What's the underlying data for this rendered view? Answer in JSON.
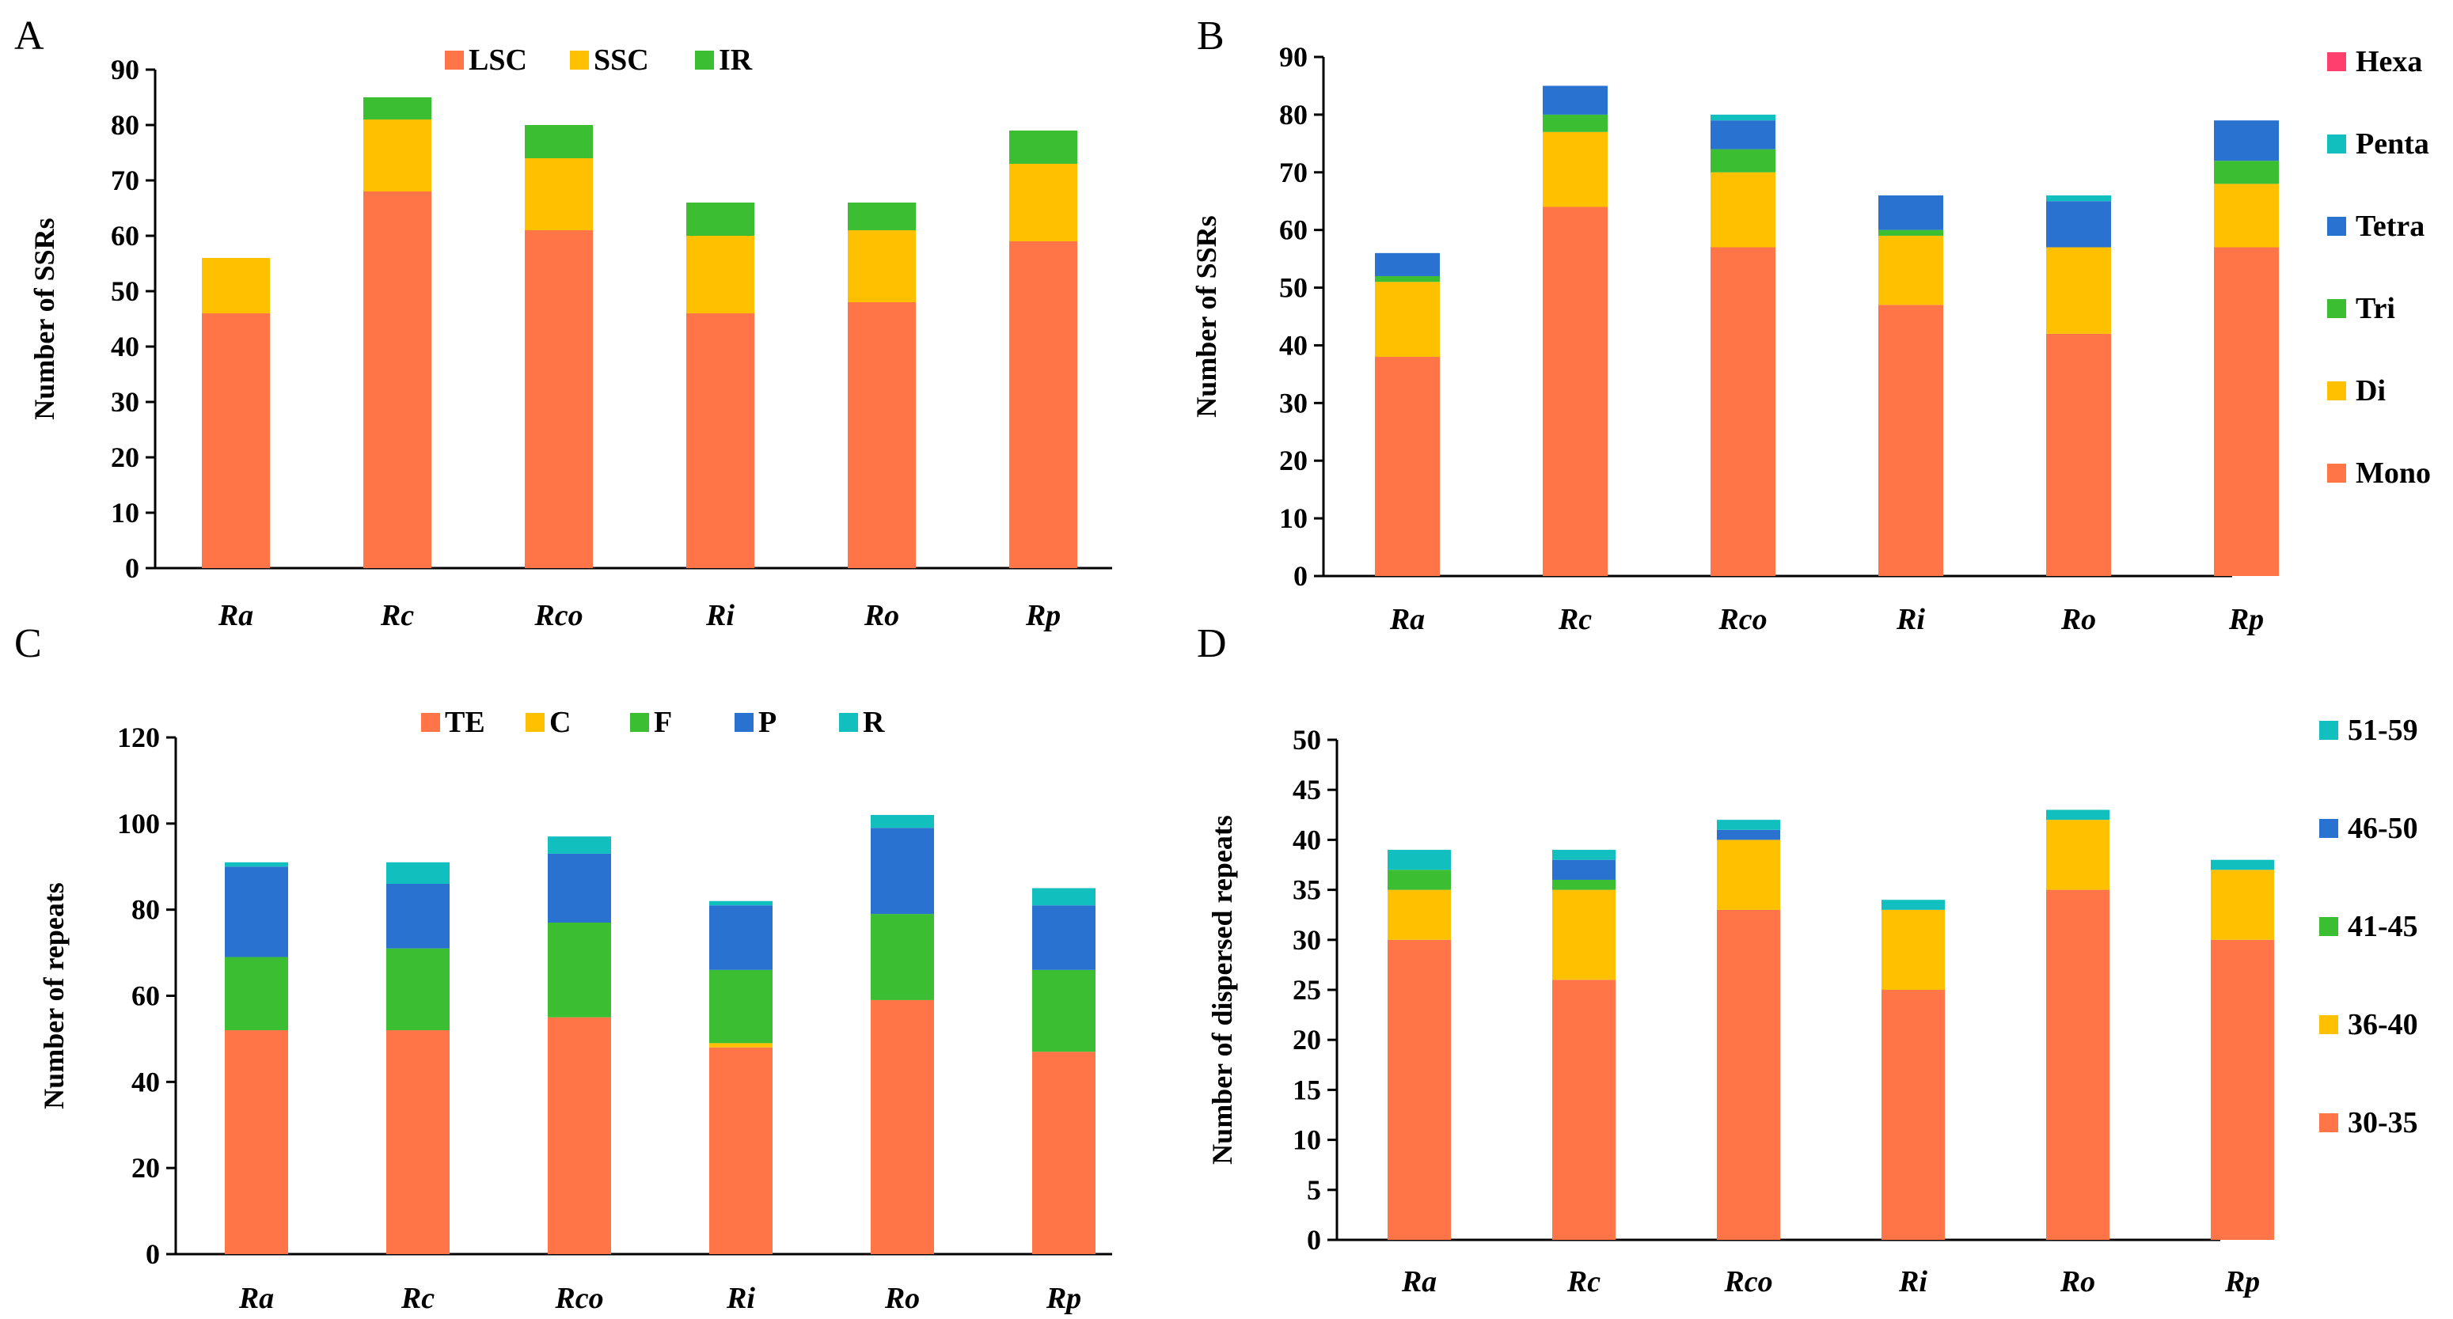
{
  "colors": {
    "orange": "#FF7548",
    "yellow": "#FFC000",
    "green": "#3BBE32",
    "blue": "#2A72CF",
    "teal": "#12BFBF",
    "pink": "#FF3F6E"
  },
  "chart_data": [
    {
      "panel": "A",
      "type": "bar",
      "stacked": true,
      "categories": [
        "Ra",
        "Rc",
        "Rco",
        "Ri",
        "Ro",
        "Rp"
      ],
      "ylabel": "Number of SSRs",
      "ylim": [
        0,
        90
      ],
      "yticks": [
        0,
        10,
        20,
        30,
        40,
        50,
        60,
        70,
        80,
        90
      ],
      "legend_position": "top-center",
      "series": [
        {
          "name": "LSC",
          "color": "#FF7548",
          "values": [
            46,
            68,
            61,
            46,
            48,
            59
          ]
        },
        {
          "name": "SSC",
          "color": "#FFC000",
          "values": [
            10,
            13,
            13,
            14,
            13,
            14
          ]
        },
        {
          "name": "IR",
          "color": "#3BBE32",
          "values": [
            0,
            4,
            6,
            6,
            5,
            6
          ]
        }
      ]
    },
    {
      "panel": "B",
      "type": "bar",
      "stacked": true,
      "categories": [
        "Ra",
        "Rc",
        "Rco",
        "Ri",
        "Ro",
        "Rp"
      ],
      "ylabel": "Number of SSRs",
      "ylim": [
        0,
        90
      ],
      "yticks": [
        0,
        10,
        20,
        30,
        40,
        50,
        60,
        70,
        80,
        90
      ],
      "legend_position": "right",
      "series": [
        {
          "name": "Mono",
          "color": "#FF7548",
          "values": [
            38,
            64,
            57,
            47,
            42,
            57
          ]
        },
        {
          "name": "Di",
          "color": "#FFC000",
          "values": [
            13,
            13,
            13,
            12,
            15,
            11
          ]
        },
        {
          "name": "Tri",
          "color": "#3BBE32",
          "values": [
            1,
            3,
            4,
            1,
            0,
            4
          ]
        },
        {
          "name": "Tetra",
          "color": "#2A72CF",
          "values": [
            4,
            5,
            5,
            6,
            8,
            7
          ]
        },
        {
          "name": "Penta",
          "color": "#12BFBF",
          "values": [
            0,
            0,
            1,
            0,
            1,
            0
          ]
        },
        {
          "name": "Hexa",
          "color": "#FF3F6E",
          "values": [
            0,
            0,
            0,
            0,
            0,
            0
          ]
        }
      ]
    },
    {
      "panel": "C",
      "type": "bar",
      "stacked": true,
      "categories": [
        "Ra",
        "Rc",
        "Rco",
        "Ri",
        "Ro",
        "Rp"
      ],
      "ylabel": "Number of  repeats",
      "ylim": [
        0,
        120
      ],
      "yticks": [
        0,
        20,
        40,
        60,
        80,
        100,
        120
      ],
      "legend_position": "top-center",
      "series": [
        {
          "name": "TE",
          "color": "#FF7548",
          "values": [
            52,
            52,
            55,
            48,
            59,
            47
          ]
        },
        {
          "name": "C",
          "color": "#FFC000",
          "values": [
            0,
            0,
            0,
            1,
            0,
            0
          ]
        },
        {
          "name": "F",
          "color": "#3BBE32",
          "values": [
            17,
            19,
            22,
            17,
            20,
            19
          ]
        },
        {
          "name": "P",
          "color": "#2A72CF",
          "values": [
            21,
            15,
            16,
            15,
            20,
            15
          ]
        },
        {
          "name": "R",
          "color": "#12BFBF",
          "values": [
            1,
            5,
            4,
            1,
            3,
            4
          ]
        }
      ]
    },
    {
      "panel": "D",
      "type": "bar",
      "stacked": true,
      "categories": [
        "Ra",
        "Rc",
        "Rco",
        "Ri",
        "Ro",
        "Rp"
      ],
      "ylabel": "Number of dispersed repeats",
      "ylim": [
        0,
        50
      ],
      "yticks": [
        0,
        5,
        10,
        15,
        20,
        25,
        30,
        35,
        40,
        45,
        50
      ],
      "legend_position": "right",
      "series": [
        {
          "name": "30-35",
          "color": "#FF7548",
          "values": [
            30,
            26,
            33,
            25,
            35,
            30
          ]
        },
        {
          "name": "36-40",
          "color": "#FFC000",
          "values": [
            5,
            9,
            7,
            8,
            7,
            7
          ]
        },
        {
          "name": "41-45",
          "color": "#3BBE32",
          "values": [
            2,
            1,
            0,
            0,
            0,
            0
          ]
        },
        {
          "name": "46-50",
          "color": "#2A72CF",
          "values": [
            0,
            2,
            1,
            0,
            0,
            0
          ]
        },
        {
          "name": "51-59",
          "color": "#12BFBF",
          "values": [
            2,
            1,
            1,
            1,
            1,
            1
          ]
        }
      ]
    }
  ]
}
